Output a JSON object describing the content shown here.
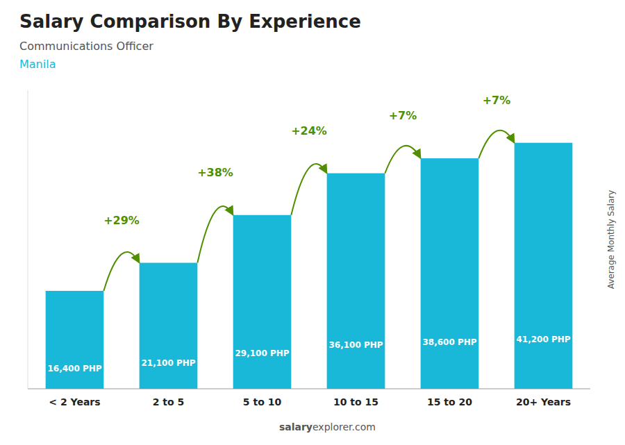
{
  "chart_data": {
    "type": "bar",
    "title": "Salary Comparison By Experience",
    "subtitle": "Communications Officer",
    "annotations": [
      "Manila",
      "+29%",
      "+38%",
      "+24%",
      "+7%",
      "+7%",
      "salary",
      "explorer.com"
    ],
    "ylabel": "Average Monthly Salary",
    "categories": [
      "< 2 Years",
      "2 to 5",
      "5 to 10",
      "10 to 15",
      "15 to 20",
      "20+ Years"
    ],
    "values": [
      16400,
      21100,
      29100,
      36100,
      38600,
      41200
    ],
    "value_labels": [
      "16,400 PHP",
      "21,100 PHP",
      "29,100 PHP",
      "36,100 PHP",
      "38,600 PHP",
      "41,200 PHP"
    ],
    "data_labels": true,
    "color": "#1ab8d8",
    "ylim": [
      0,
      50000
    ],
    "tick_labels": "x"
  }
}
